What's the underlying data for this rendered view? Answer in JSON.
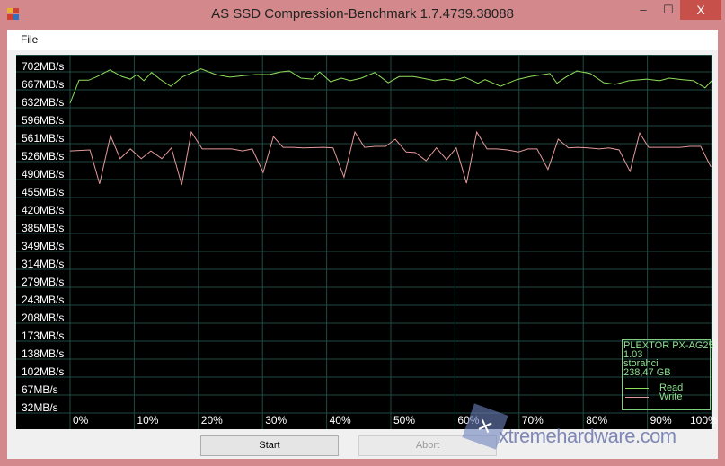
{
  "window": {
    "title": "AS SSD Compression-Benchmark 1.7.4739.38088",
    "minimize": "‒",
    "maximize": "☐",
    "close": "X"
  },
  "menu": {
    "file": "File"
  },
  "buttons": {
    "start": "Start",
    "abort": "Abort"
  },
  "legend": {
    "device": "PLEXTOR PX-AG25",
    "firmware": "1.03",
    "driver": "storahci",
    "size": "238,47 GB",
    "read": "Read",
    "write": "Write"
  },
  "watermark": "xtremehardware.com",
  "colors": {
    "read": "#8ee05a",
    "write": "#e59a9a",
    "grid": "#1f4a44",
    "background": "#000000"
  },
  "chart_data": {
    "type": "line",
    "y_ticks": [
      "702MB/s",
      "667MB/s",
      "632MB/s",
      "596MB/s",
      "561MB/s",
      "526MB/s",
      "490MB/s",
      "455MB/s",
      "420MB/s",
      "385MB/s",
      "349MB/s",
      "314MB/s",
      "279MB/s",
      "243MB/s",
      "208MB/s",
      "173MB/s",
      "138MB/s",
      "102MB/s",
      "67MB/s",
      "32MB/s"
    ],
    "x_ticks": [
      "0%",
      "10%",
      "20%",
      "30%",
      "40%",
      "50%",
      "60%",
      "70%",
      "80%",
      "90%",
      "100%"
    ],
    "xlim": [
      0,
      100
    ],
    "ylim": [
      32,
      702
    ],
    "grid": true,
    "legend_position": "bottom-right",
    "series": [
      {
        "name": "Read",
        "x": [
          0,
          1.4,
          2.9,
          4.2,
          6.2,
          8.1,
          9.4,
          10.4,
          11.5,
          12.7,
          14.0,
          15.7,
          17.6,
          20.4,
          22.7,
          24.9,
          27.2,
          29.0,
          31.1,
          32.8,
          34.2,
          36.0,
          37.8,
          38.9,
          40.6,
          42.3,
          43.7,
          45.4,
          47.5,
          49.6,
          51.3,
          53.5,
          54.9,
          56.9,
          58.4,
          59.8,
          61.5,
          63.6,
          64.7,
          67.1,
          69.6,
          71.7,
          74.8,
          75.9,
          77.3,
          79.0,
          81.1,
          83.2,
          85.0,
          87.1,
          89.9,
          91.9,
          93.4,
          95.5,
          97.2,
          99.0,
          100
        ],
        "y": [
          625,
          670,
          670,
          677,
          690,
          677,
          672,
          681,
          669,
          685,
          672,
          658,
          677,
          692,
          681,
          676,
          679,
          681,
          681,
          686,
          688,
          674,
          672,
          686,
          667,
          674,
          669,
          674,
          685,
          665,
          677,
          677,
          674,
          669,
          672,
          669,
          676,
          664,
          671,
          658,
          671,
          677,
          683,
          664,
          676,
          688,
          683,
          665,
          662,
          669,
          672,
          669,
          674,
          671,
          669,
          655,
          669
        ]
      },
      {
        "name": "Write",
        "x": [
          0,
          3.1,
          4.6,
          6.3,
          7.8,
          9.4,
          11.1,
          12.6,
          14.3,
          15.8,
          17.4,
          18.9,
          20.6,
          23.8,
          25.2,
          26.9,
          28.4,
          30.1,
          31.7,
          33.2,
          34.7,
          36.4,
          39.5,
          41.0,
          42.7,
          44.4,
          45.9,
          47.6,
          49.2,
          50.7,
          52.4,
          53.8,
          55.5,
          57.1,
          58.7,
          60.2,
          61.8,
          63.4,
          65.0,
          66.5,
          68.2,
          69.9,
          71.4,
          72.8,
          74.5,
          76.1,
          77.7,
          79.1,
          80.8,
          82.5,
          84.0,
          85.6,
          87.3,
          88.8,
          90.2,
          92.0,
          93.7,
          95.1,
          96.6,
          98.3,
          99.9
        ],
        "y": [
          532,
          534,
          468,
          562,
          517,
          536,
          517,
          532,
          517,
          538,
          466,
          569,
          536,
          536,
          536,
          532,
          536,
          490,
          560,
          539,
          539,
          538,
          539,
          538,
          481,
          569,
          539,
          541,
          541,
          555,
          530,
          529,
          513,
          538,
          515,
          538,
          469,
          569,
          536,
          536,
          534,
          530,
          536,
          536,
          496,
          555,
          538,
          539,
          538,
          536,
          538,
          534,
          492,
          567,
          539,
          539,
          539,
          539,
          541,
          541,
          501
        ]
      }
    ]
  }
}
